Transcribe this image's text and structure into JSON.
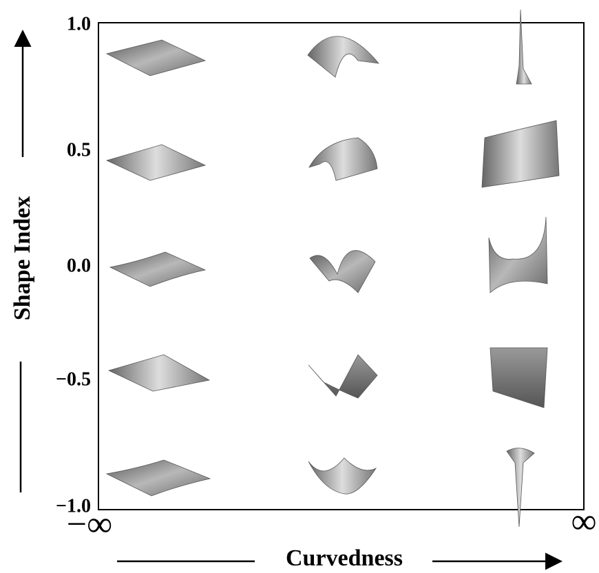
{
  "y_axis": {
    "title": "Shape Index",
    "tick_labels": [
      "1.0",
      "0.5",
      "0.0",
      "−0.5",
      "−1.0"
    ]
  },
  "x_axis": {
    "title": "Curvedness",
    "tick_labels": [
      "−∞",
      "∞"
    ]
  }
}
